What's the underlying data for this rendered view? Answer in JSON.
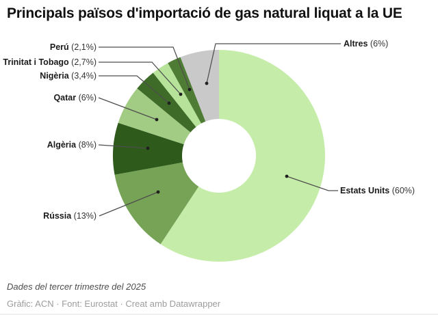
{
  "header": {
    "title": "Principals països d'importació de gas natural liquat a la UE"
  },
  "chart_data": {
    "type": "pie",
    "subtype": "donut",
    "title": "Principals països d'importació de gas natural liquat a la UE",
    "unit": "%",
    "hole_ratio": 0.35,
    "legend_position": "outside-labels",
    "slices": [
      {
        "slug": "estats-units",
        "name": "Estats Units",
        "value": 60,
        "pct_label": "(60%)",
        "color": "#c5eda9"
      },
      {
        "slug": "russia",
        "name": "Rússia",
        "value": 13,
        "pct_label": "(13%)",
        "color": "#76a356"
      },
      {
        "slug": "algeria",
        "name": "Algèria",
        "value": 8,
        "pct_label": "(8%)",
        "color": "#2e5a1c"
      },
      {
        "slug": "qatar",
        "name": "Qatar",
        "value": 6,
        "pct_label": "(6%)",
        "color": "#a2cb83"
      },
      {
        "slug": "nigeria",
        "name": "Nigèria",
        "value": 3.4,
        "pct_label": "(3,4%)",
        "color": "#3f6b28"
      },
      {
        "slug": "trinitat-i-tobago",
        "name": "Trinitat i Tobago",
        "value": 2.7,
        "pct_label": "(2,7%)",
        "color": "#b6e399"
      },
      {
        "slug": "peru",
        "name": "Perú",
        "value": 2.1,
        "pct_label": "(2,1%)",
        "color": "#4f7c35"
      },
      {
        "slug": "altres",
        "name": "Altres",
        "value": 6,
        "pct_label": "(6%)",
        "color": "#c9c9c9"
      }
    ],
    "connector_color": "#4d4d4d",
    "dot_color": "#1f1f1f"
  },
  "footer": {
    "notes": "Dades del tercer trimestre del 2025",
    "byline": "Gràfic: ACN · Font: Eurostat · Creat amb Datawrapper"
  }
}
